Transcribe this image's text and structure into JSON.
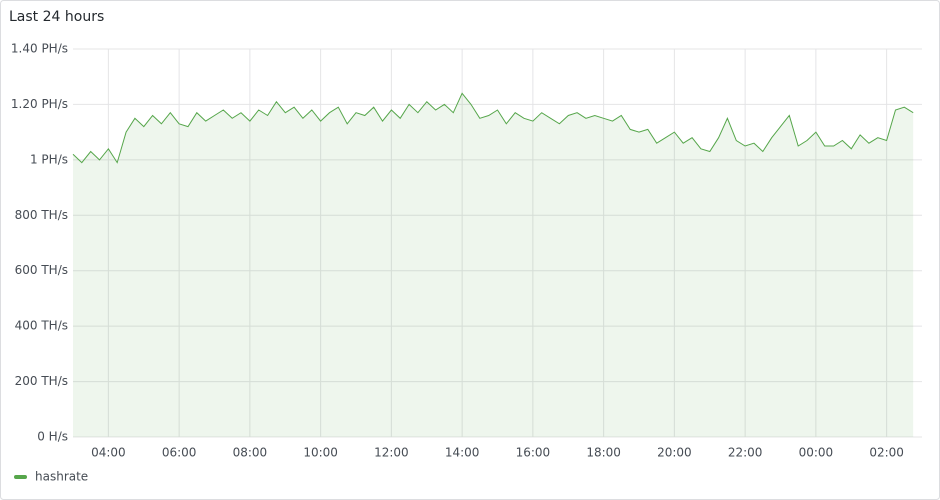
{
  "chart_data": {
    "type": "area",
    "title": "Last 24 hours",
    "x": [
      "03:00",
      "03:15",
      "03:30",
      "03:45",
      "04:00",
      "04:15",
      "04:30",
      "04:45",
      "05:00",
      "05:15",
      "05:30",
      "05:45",
      "06:00",
      "06:15",
      "06:30",
      "06:45",
      "07:00",
      "07:15",
      "07:30",
      "07:45",
      "08:00",
      "08:15",
      "08:30",
      "08:45",
      "09:00",
      "09:15",
      "09:30",
      "09:45",
      "10:00",
      "10:15",
      "10:30",
      "10:45",
      "11:00",
      "11:15",
      "11:30",
      "11:45",
      "12:00",
      "12:15",
      "12:30",
      "12:45",
      "13:00",
      "13:15",
      "13:30",
      "13:45",
      "14:00",
      "14:15",
      "14:30",
      "14:45",
      "15:00",
      "15:15",
      "15:30",
      "15:45",
      "16:00",
      "16:15",
      "16:30",
      "16:45",
      "17:00",
      "17:15",
      "17:30",
      "17:45",
      "18:00",
      "18:15",
      "18:30",
      "18:45",
      "19:00",
      "19:15",
      "19:30",
      "19:45",
      "20:00",
      "20:15",
      "20:30",
      "20:45",
      "21:00",
      "21:15",
      "21:30",
      "21:45",
      "22:00",
      "22:15",
      "22:30",
      "22:45",
      "23:00",
      "23:15",
      "23:30",
      "23:45",
      "00:00",
      "00:15",
      "00:30",
      "00:45",
      "01:00",
      "01:15",
      "01:30",
      "01:45",
      "02:00",
      "02:15",
      "02:30",
      "02:45"
    ],
    "series": [
      {
        "name": "hashrate",
        "color": "#56a64b",
        "values": [
          1020,
          990,
          1030,
          1000,
          1040,
          990,
          1100,
          1150,
          1120,
          1160,
          1130,
          1170,
          1130,
          1120,
          1170,
          1140,
          1160,
          1180,
          1150,
          1170,
          1140,
          1180,
          1160,
          1210,
          1170,
          1190,
          1150,
          1180,
          1140,
          1170,
          1190,
          1130,
          1170,
          1160,
          1190,
          1140,
          1180,
          1150,
          1200,
          1170,
          1210,
          1180,
          1200,
          1170,
          1240,
          1200,
          1150,
          1160,
          1180,
          1130,
          1170,
          1150,
          1140,
          1170,
          1150,
          1130,
          1160,
          1170,
          1150,
          1160,
          1150,
          1140,
          1160,
          1110,
          1100,
          1110,
          1060,
          1080,
          1100,
          1060,
          1080,
          1040,
          1030,
          1080,
          1150,
          1070,
          1050,
          1060,
          1030,
          1080,
          1120,
          1160,
          1050,
          1070,
          1100,
          1050,
          1050,
          1070,
          1040,
          1090,
          1060,
          1080,
          1070,
          1180,
          1190,
          1170
        ]
      }
    ],
    "ylim": [
      0,
      1400
    ],
    "yticks": [
      {
        "value": 0,
        "label": "0 H/s"
      },
      {
        "value": 200,
        "label": "200 TH/s"
      },
      {
        "value": 400,
        "label": "400 TH/s"
      },
      {
        "value": 600,
        "label": "600 TH/s"
      },
      {
        "value": 800,
        "label": "800 TH/s"
      },
      {
        "value": 1000,
        "label": "1 PH/s"
      },
      {
        "value": 1200,
        "label": "1.20 PH/s"
      },
      {
        "value": 1400,
        "label": "1.40 PH/s"
      }
    ],
    "grid": true
  }
}
